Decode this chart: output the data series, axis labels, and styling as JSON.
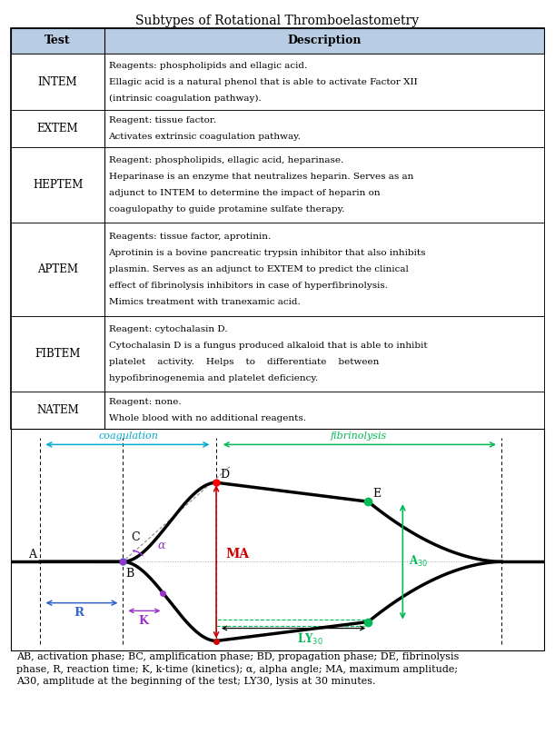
{
  "title": "Subtypes of Rotational Thromboelastometry",
  "col_headers": [
    "Test",
    "Description"
  ],
  "rows": [
    {
      "test": "INTEM",
      "desc_lines": [
        "Reagents: phospholipids and ellagic acid.",
        "Ellagic acid is a natural phenol that is able to activate Factor XII",
        "(intrinsic coagulation pathway)."
      ]
    },
    {
      "test": "EXTEM",
      "desc_lines": [
        "Reagent: tissue factor.",
        "Activates extrinsic coagulation pathway."
      ]
    },
    {
      "test": "HEPTEM",
      "desc_lines": [
        "Reagent: phospholipids, ellagic acid, heparinase.",
        "Heparinase is an enzyme that neutralizes heparin. Serves as an",
        "adjunct to INTEM to determine the impact of heparin on",
        "coagulopathy to guide protamine sulfate therapy."
      ]
    },
    {
      "test": "APTEM",
      "desc_lines": [
        "Reagents: tissue factor, aprotinin.",
        "Aprotinin is a bovine pancreatic trypsin inhibitor that also inhibits",
        "plasmin. Serves as an adjunct to EXTEM to predict the clinical",
        "effect of fibrinolysis inhibitors in case of hyperfibrinolysis.",
        "Mimics treatment with tranexamic acid."
      ]
    },
    {
      "test": "FIBTEM",
      "desc_lines": [
        "Reagent: cytochalasin D.",
        "Cytochalasin D is a fungus produced alkaloid that is able to inhibit",
        "platelet    activity.    Helps    to    differentiate    between",
        "hypofibrinogenemia and platelet deficiency."
      ]
    },
    {
      "test": "NATEM",
      "desc_lines": [
        "Reagent: none.",
        "Whole blood with no additional reagents."
      ]
    }
  ],
  "caption": "AB, activation phase; BC, amplification phase; BD, propagation phase; DE, fibrinolysis\nphase, R, reaction time; K, k-time (kinetics); α, alpha angle; MA, maximum amplitude;\nA30, amplitude at the beginning of the test; LY30, lysis at 30 minutes.",
  "header_bg": "#b8cce4",
  "coag_color": "#00aacc",
  "fibrin_color": "#00bb55",
  "alpha_color": "#9933cc",
  "r_color": "#3366cc",
  "k_color": "#9933cc",
  "ma_color": "#cc0000",
  "a30_color": "#00bb55",
  "ly30_color": "#00bb55"
}
